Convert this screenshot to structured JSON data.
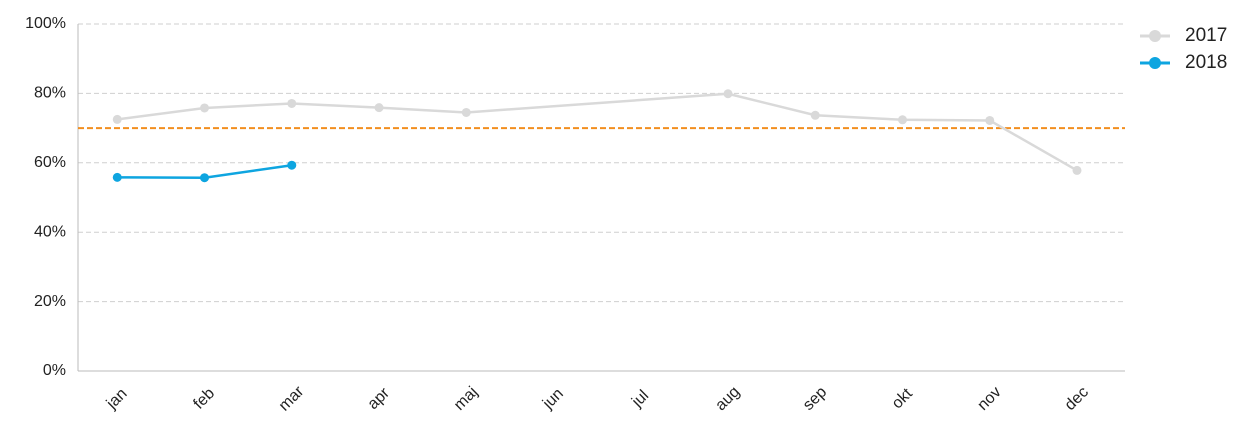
{
  "chart_data": {
    "type": "line",
    "categories": [
      "jan",
      "feb",
      "mar",
      "apr",
      "maj",
      "jun",
      "jul",
      "aug",
      "sep",
      "okt",
      "nov",
      "dec"
    ],
    "series": [
      {
        "name": "2017",
        "color": "#d9d9d9",
        "values": [
          72.5,
          75.8,
          77.1,
          75.9,
          74.5,
          null,
          null,
          79.9,
          73.7,
          72.4,
          72.2,
          57.8
        ]
      },
      {
        "name": "2018",
        "color": "#0ea5e0",
        "values": [
          55.8,
          55.7,
          59.3,
          null,
          null,
          null,
          null,
          null,
          null,
          null,
          null,
          null
        ]
      }
    ],
    "ylim": [
      0,
      100
    ],
    "yticks": [
      {
        "value": 0,
        "label": "0%"
      },
      {
        "value": 20,
        "label": "20%"
      },
      {
        "value": 40,
        "label": "40%"
      },
      {
        "value": 60,
        "label": "60%"
      },
      {
        "value": 80,
        "label": "80%"
      },
      {
        "value": 100,
        "label": "100%"
      }
    ],
    "grid": true,
    "connect_gaps": true,
    "reference_line": {
      "value": 70,
      "color": "#f28e1e"
    },
    "legend": "top-right"
  }
}
